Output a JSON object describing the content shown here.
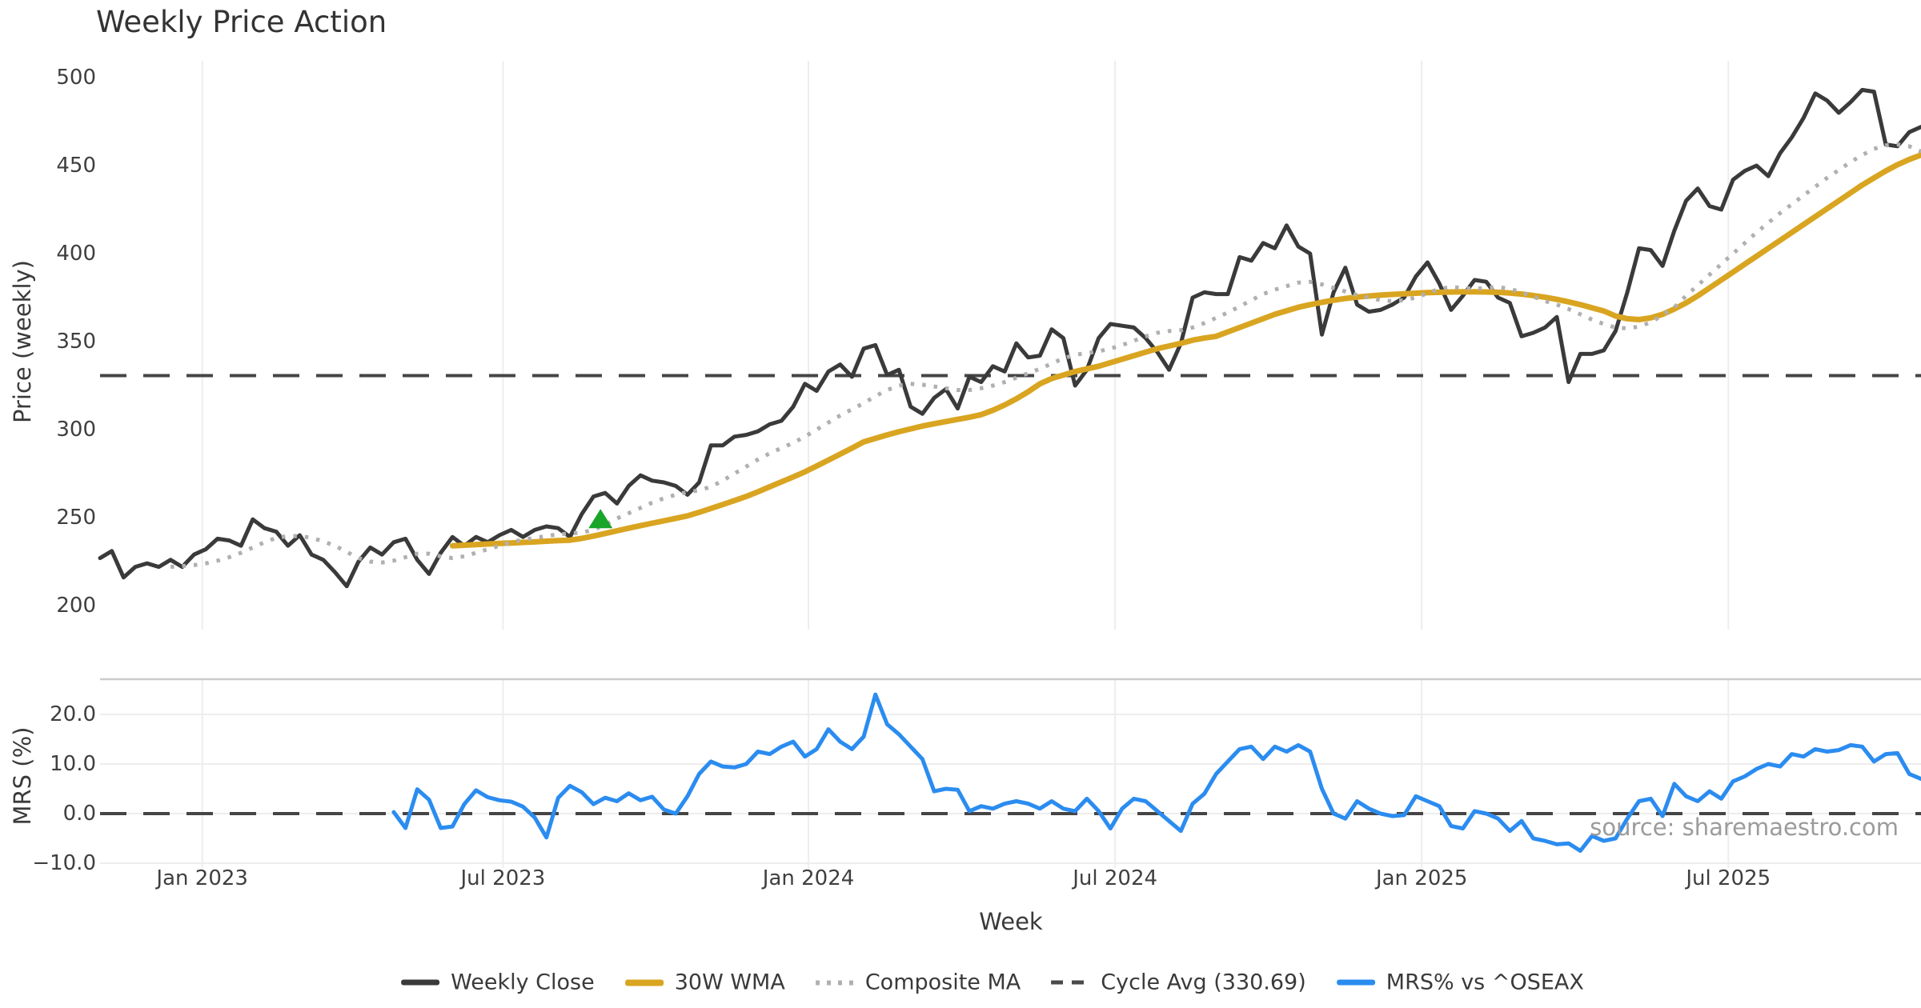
{
  "title": "Weekly Price Action",
  "source_note": "source: sharemaestro.com",
  "colors": {
    "weekly_close": "#3a3a3a",
    "wma_30w": "#d9a521",
    "composite_ma": "#b0b0b0",
    "cycle_avg": "#454545",
    "mrs": "#2b8cf0",
    "signal_marker": "#18a529",
    "grid": "#ededed",
    "spine": "#cbcbcb",
    "tick_text": "#3f3f3f",
    "source_text": "#9b9b9b"
  },
  "legend": [
    {
      "label": "Weekly Close",
      "swatch": "solid-dark"
    },
    {
      "label": "30W WMA",
      "swatch": "solid-gold"
    },
    {
      "label": "Composite MA",
      "swatch": "dotted"
    },
    {
      "label": "Cycle Avg (330.69)",
      "swatch": "dashed"
    },
    {
      "label": "MRS% vs ^OSEAX",
      "swatch": "solid-blue"
    }
  ],
  "chart_data": {
    "type": "line",
    "grid": "vertical",
    "legend_position": "bottom-center",
    "x_axis": {
      "label": "Week",
      "weeks_total": 156,
      "tick_labels": [
        "Jan 2023",
        "Jul 2023",
        "Jan 2024",
        "Jul 2024",
        "Jan 2025",
        "Jul 2025"
      ],
      "tick_week_positions": [
        8.7,
        34.3,
        60.3,
        86.4,
        112.5,
        138.6
      ]
    },
    "panels": [
      {
        "name": "price",
        "y_label": "Price (weekly)",
        "y_ticks": [
          500,
          450,
          400,
          350,
          300,
          250,
          200
        ],
        "ylim": [
          187,
          510
        ],
        "reference_line": {
          "name": "Cycle Avg",
          "value": 330.69
        },
        "signal_marker": {
          "week": 42.6,
          "value": 248.5,
          "symbol": "triangle-up"
        },
        "series": [
          {
            "name": "Weekly Close",
            "style": "solid",
            "color_key": "weekly_close",
            "width": 5,
            "start_week": 0,
            "values": [
              227,
              231,
              216,
              222,
              224,
              222,
              226,
              222,
              229,
              232,
              238,
              237,
              234,
              249,
              244,
              242,
              234,
              240,
              229,
              226,
              219,
              211,
              225,
              233,
              229,
              236,
              238,
              226,
              218,
              230,
              239,
              234,
              239,
              236,
              240,
              243,
              239,
              243,
              245,
              244,
              239,
              252,
              262,
              264,
              258,
              268,
              274,
              271,
              270,
              268,
              263,
              270,
              291,
              291,
              296,
              297,
              299,
              303,
              305,
              313,
              326,
              322,
              333,
              337,
              330,
              346,
              348,
              331,
              334,
              313,
              309,
              318,
              323,
              312,
              330,
              327,
              336,
              333,
              349,
              341,
              342,
              357,
              352,
              325,
              334,
              352,
              360,
              359,
              358,
              352,
              344,
              334,
              349,
              375,
              378,
              377,
              377,
              398,
              396,
              406,
              403,
              416,
              404,
              400,
              354,
              378,
              392,
              371,
              367,
              368,
              371,
              375,
              387,
              395,
              383,
              368,
              376,
              385,
              384,
              375,
              372,
              353,
              355,
              358,
              364,
              327,
              343,
              343,
              345,
              356,
              378,
              403,
              402,
              393,
              413,
              430,
              437,
              427,
              425,
              442,
              447,
              450,
              444,
              457,
              466,
              477,
              491,
              487,
              480,
              486,
              493,
              492,
              462,
              461,
              469,
              472
            ]
          },
          {
            "name": "30W WMA",
            "style": "solid",
            "color_key": "wma_30w",
            "width": 7,
            "start_week": 30,
            "values": [
              234,
              234.3,
              234.7,
              235,
              235.3,
              235.6,
              235.9,
              236.2,
              236.6,
              236.9,
              237.2,
              238.2,
              239.5,
              241,
              242.5,
              244,
              245.4,
              246.8,
              248.2,
              249.6,
              251,
              253,
              255.2,
              257.4,
              259.7,
              262,
              264.7,
              267.5,
              270.3,
              273.1,
              276,
              279.3,
              282.7,
              286.1,
              289.5,
              293,
              295,
              297,
              298.8,
              300.4,
              302,
              303.3,
              304.6,
              305.8,
              307,
              308.5,
              311,
              314,
              317.5,
              321.5,
              326,
              329,
              331,
              333,
              334.5,
              336,
              338,
              340,
              342,
              344,
              346,
              347.5,
              349,
              350.8,
              352,
              353,
              355.5,
              358,
              360.5,
              363,
              365.5,
              367.5,
              369.5,
              371,
              372.3,
              373.5,
              374.5,
              375.3,
              375.9,
              376.4,
              376.8,
              377.2,
              377.5,
              377.8,
              378,
              378.2,
              378.3,
              378.3,
              378.2,
              378,
              377.6,
              377,
              376.2,
              375.2,
              374,
              372.6,
              371,
              369.2,
              367.4,
              364.5,
              363,
              362.5,
              363.5,
              365.5,
              368.5,
              372,
              376,
              380.5,
              385,
              389.5,
              394,
              398.5,
              403,
              407.5,
              412,
              416.5,
              421,
              425.5,
              430,
              434.5,
              439,
              443,
              447,
              450.5,
              453.5,
              456
            ]
          },
          {
            "name": "Composite MA",
            "style": "dotted",
            "color_key": "composite_ma",
            "width": 5,
            "start_week": 6,
            "values": [
              222,
              222.5,
              223,
              224,
              225.5,
              227.5,
              230,
              233,
              236,
              238.5,
              239.5,
              239.5,
              238.5,
              236.5,
              234,
              230.5,
              227,
              225,
              224.5,
              225.5,
              227.5,
              229.5,
              229.5,
              228,
              227,
              228,
              230,
              232,
              234,
              236,
              237.5,
              238.5,
              239.5,
              240.5,
              241,
              241.5,
              243,
              246,
              249.5,
              252.5,
              255.5,
              258.5,
              261,
              263,
              264.5,
              265.5,
              267.5,
              271,
              275,
              279,
              283,
              286.5,
              289.5,
              292.5,
              296,
              300,
              304,
              308,
              311.5,
              315,
              319,
              322.5,
              325,
              326,
              325.5,
              324.5,
              323.5,
              322.5,
              322.5,
              323.5,
              325,
              327,
              329.5,
              332,
              334.5,
              337.5,
              340.5,
              342.5,
              343.5,
              344.5,
              346,
              348,
              350.5,
              353,
              355,
              356,
              356.5,
              358,
              360.5,
              363.5,
              366.5,
              370,
              373.5,
              377,
              379.5,
              381.5,
              383.5,
              384,
              382.5,
              380.5,
              378.5,
              376.5,
              375,
              373.5,
              373,
              373.5,
              375,
              377.5,
              380,
              381,
              380.5,
              380,
              380.5,
              381,
              380,
              378,
              375.5,
              373,
              371,
              368.5,
              365.5,
              362.5,
              360,
              358,
              357.5,
              358.5,
              361,
              365,
              369.5,
              376,
              382,
              388,
              394,
              400,
              406,
              412,
              417.5,
              423,
              428,
              433,
              438,
              443,
              447.5,
              452,
              456,
              459.5,
              461.5,
              462,
              461,
              458
            ]
          }
        ]
      },
      {
        "name": "mrs",
        "y_label": "MRS (%)",
        "y_ticks": [
          20,
          10,
          0,
          -10
        ],
        "y_tick_labels": [
          "20.0",
          "10.0",
          "0.0",
          "−10.0"
        ],
        "ylim": [
          -12,
          27
        ],
        "reference_line": {
          "name": "zero",
          "value": 0
        },
        "series": [
          {
            "name": "MRS% vs ^OSEAX",
            "style": "solid",
            "color_key": "mrs",
            "width": 5,
            "start_week": 25,
            "values": [
              0.3,
              -2.9,
              4.9,
              2.8,
              -2.9,
              -2.6,
              1.9,
              4.7,
              3.3,
              2.7,
              2.4,
              1.4,
              -0.8,
              -4.8,
              3.2,
              5.6,
              4.3,
              1.9,
              3.2,
              2.5,
              4.1,
              2.7,
              3.4,
              0.8,
              0,
              3.5,
              8,
              10.5,
              9.5,
              9.3,
              10,
              12.5,
              12,
              13.5,
              14.5,
              11.5,
              13,
              17,
              14.5,
              13,
              15.5,
              24,
              18,
              16,
              13.5,
              11,
              4.5,
              5,
              4.8,
              0.5,
              1.5,
              1,
              2,
              2.5,
              2,
              1,
              2.5,
              1,
              0.5,
              3,
              0.5,
              -3,
              1,
              3,
              2.5,
              0.5,
              -1.5,
              -3.5,
              2,
              4,
              8,
              10.5,
              13,
              13.5,
              11,
              13.5,
              12.5,
              13.8,
              12.5,
              5,
              0,
              -1,
              2.5,
              1,
              0,
              -0.5,
              -0.3,
              3.5,
              2.5,
              1.5,
              -2.5,
              -3,
              0.5,
              0,
              -1,
              -3.5,
              -1.5,
              -5,
              -5.5,
              -6.2,
              -6,
              -7.5,
              -4.5,
              -5.5,
              -5,
              -1,
              2.5,
              3,
              -0.5,
              6,
              3.5,
              2.5,
              4.5,
              3,
              6.5,
              7.5,
              9,
              10,
              9.5,
              12,
              11.5,
              13,
              12.5,
              12.8,
              13.8,
              13.5,
              10.5,
              12,
              12.2,
              8,
              7
            ]
          }
        ]
      }
    ]
  }
}
